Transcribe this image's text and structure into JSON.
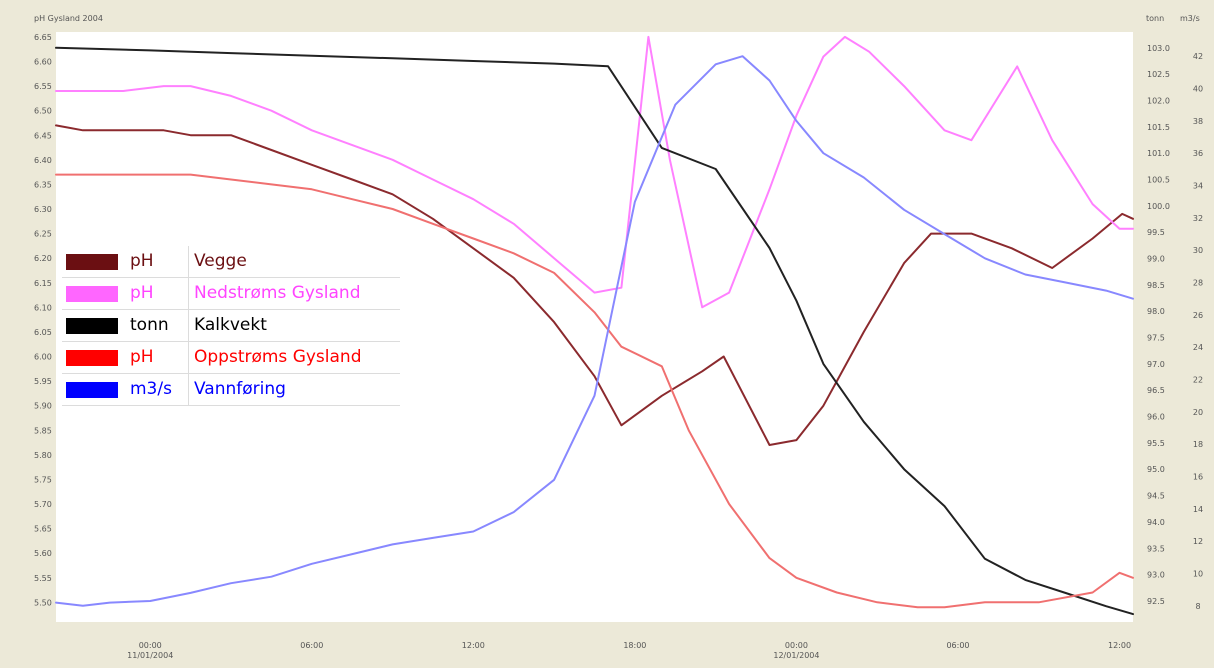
{
  "header": {
    "title": "pH  Gysland 2004",
    "right_unit_1": "tonn",
    "right_unit_2": "m3/s"
  },
  "legend": [
    {
      "unit": "pH",
      "name": "Vegge",
      "color": "#6b0f12"
    },
    {
      "unit": "pH",
      "name": "Nedstrøms Gysland",
      "color": "#ff66ff"
    },
    {
      "unit": "tonn",
      "name": "Kalkvekt",
      "color": "#000000"
    },
    {
      "unit": "pH",
      "name": "Oppstrøms Gysland",
      "color": "#ff0000"
    },
    {
      "unit": "m3/s",
      "name": "Vannføring",
      "color": "#0000ff"
    }
  ],
  "chart_data": {
    "type": "line",
    "title": "pH  Gysland 2004",
    "x_unit": "hours from 11/01/2004 00:00",
    "xlim": [
      -3.5,
      36.5
    ],
    "x_ticks": [
      {
        "x": 0,
        "label": "00:00",
        "sublabel": "11/01/2004"
      },
      {
        "x": 6,
        "label": "06:00",
        "sublabel": ""
      },
      {
        "x": 12,
        "label": "12:00",
        "sublabel": ""
      },
      {
        "x": 18,
        "label": "18:00",
        "sublabel": ""
      },
      {
        "x": 24,
        "label": "00:00",
        "sublabel": "12/01/2004"
      },
      {
        "x": 30,
        "label": "06:00",
        "sublabel": ""
      },
      {
        "x": 36,
        "label": "12:00",
        "sublabel": ""
      }
    ],
    "axes": {
      "left": {
        "label": "pH",
        "ylim": [
          5.46,
          6.66
        ],
        "ticks": [
          "5.50",
          "5.55",
          "5.60",
          "5.65",
          "5.70",
          "5.75",
          "5.80",
          "5.85",
          "5.90",
          "5.95",
          "6.00",
          "6.05",
          "6.10",
          "6.15",
          "6.20",
          "6.25",
          "6.30",
          "6.35",
          "6.40",
          "6.45",
          "6.50",
          "6.55",
          "6.60",
          "6.65"
        ]
      },
      "right1": {
        "label": "tonn",
        "ylim": [
          92.1,
          103.3
        ],
        "ticks": [
          "92.5",
          "93.0",
          "93.5",
          "94.0",
          "94.5",
          "95.0",
          "95.5",
          "96.0",
          "96.5",
          "97.0",
          "97.5",
          "98.0",
          "98.5",
          "99.0",
          "99.5",
          "100.0",
          "100.5",
          "101.0",
          "101.5",
          "102.0",
          "102.5",
          "103.0"
        ]
      },
      "right2": {
        "label": "m3/s",
        "ylim": [
          7,
          43.5
        ],
        "ticks": [
          "8",
          "10",
          "12",
          "14",
          "16",
          "18",
          "20",
          "22",
          "24",
          "26",
          "28",
          "30",
          "32",
          "34",
          "36",
          "38",
          "40",
          "42"
        ]
      }
    },
    "series": [
      {
        "name": "Vegge",
        "axis": "left",
        "color": "#8b2a2e",
        "x": [
          -3.5,
          -2.5,
          -1,
          0.5,
          1.5,
          3,
          4.5,
          6,
          7.5,
          9,
          10.5,
          12,
          13.5,
          15,
          16.5,
          17.5,
          19,
          20.5,
          21.3,
          23,
          24,
          25,
          26.5,
          28,
          29,
          30.5,
          32,
          33.5,
          35,
          36.1,
          36.5
        ],
        "y": [
          6.47,
          6.46,
          6.46,
          6.46,
          6.45,
          6.45,
          6.42,
          6.39,
          6.36,
          6.33,
          6.28,
          6.22,
          6.16,
          6.07,
          5.96,
          5.86,
          5.92,
          5.97,
          6.0,
          5.82,
          5.83,
          5.9,
          6.05,
          6.19,
          6.25,
          6.25,
          6.22,
          6.18,
          6.24,
          6.29,
          6.28
        ]
      },
      {
        "name": "Nedstrøms Gysland",
        "axis": "left",
        "color": "#ff80ff",
        "x": [
          -3.5,
          -2,
          -1,
          0.5,
          1.5,
          3,
          4.5,
          6,
          7.5,
          9,
          10.5,
          12,
          13.5,
          15,
          16.5,
          17.5,
          18.5,
          19.3,
          20.5,
          21.5,
          23,
          24,
          25,
          25.8,
          26.7,
          28,
          29.5,
          30.5,
          32.2,
          33.5,
          35,
          36,
          36.5
        ],
        "y": [
          6.54,
          6.54,
          6.54,
          6.55,
          6.55,
          6.53,
          6.5,
          6.46,
          6.43,
          6.4,
          6.36,
          6.32,
          6.27,
          6.2,
          6.13,
          6.14,
          6.65,
          6.4,
          6.1,
          6.13,
          6.34,
          6.49,
          6.61,
          6.65,
          6.62,
          6.55,
          6.46,
          6.44,
          6.59,
          6.44,
          6.31,
          6.26,
          6.26
        ]
      },
      {
        "name": "Kalkvekt",
        "axis": "right1",
        "color": "#222222",
        "x": [
          -3.5,
          0,
          3,
          6,
          9,
          12,
          15,
          17,
          19,
          21,
          23,
          24,
          25,
          26.5,
          28,
          29.5,
          31,
          32.5,
          34,
          35.5,
          36.5
        ],
        "y": [
          103.0,
          102.95,
          102.9,
          102.85,
          102.8,
          102.75,
          102.7,
          102.65,
          101.1,
          100.7,
          99.2,
          98.2,
          97.0,
          95.9,
          95.0,
          94.3,
          93.3,
          92.9,
          92.65,
          92.4,
          92.25
        ]
      },
      {
        "name": "Oppstrøms Gysland",
        "axis": "left",
        "color": "#f07070",
        "x": [
          -3.5,
          -1,
          1.5,
          3,
          4.5,
          6,
          7.5,
          9,
          10.5,
          12,
          13.5,
          15,
          16.5,
          17.5,
          19,
          20,
          21.5,
          23,
          24,
          25.5,
          27,
          28.5,
          29.5,
          31,
          33,
          35,
          36,
          36.5
        ],
        "y": [
          6.37,
          6.37,
          6.37,
          6.36,
          6.35,
          6.34,
          6.32,
          6.3,
          6.27,
          6.24,
          6.21,
          6.17,
          6.09,
          6.02,
          5.98,
          5.85,
          5.7,
          5.59,
          5.55,
          5.52,
          5.5,
          5.49,
          5.49,
          5.5,
          5.5,
          5.52,
          5.56,
          5.55
        ]
      },
      {
        "name": "Vannføring",
        "axis": "right2",
        "color": "#8888ff",
        "x": [
          -3.5,
          -2.5,
          -1.5,
          0,
          1.5,
          3,
          4.5,
          6,
          7.5,
          9,
          10.5,
          12,
          13.5,
          15,
          16.5,
          18,
          19.5,
          21,
          22,
          23,
          24,
          25,
          26.5,
          28,
          29.5,
          31,
          32.5,
          34,
          35.5,
          36.5
        ],
        "y": [
          8.2,
          8.0,
          8.2,
          8.3,
          8.8,
          9.4,
          9.8,
          10.6,
          11.2,
          11.8,
          12.2,
          12.6,
          13.8,
          15.8,
          21,
          33,
          39,
          41.5,
          42,
          40.5,
          38,
          36,
          34.5,
          32.5,
          31,
          29.5,
          28.5,
          28,
          27.5,
          27
        ]
      }
    ]
  }
}
